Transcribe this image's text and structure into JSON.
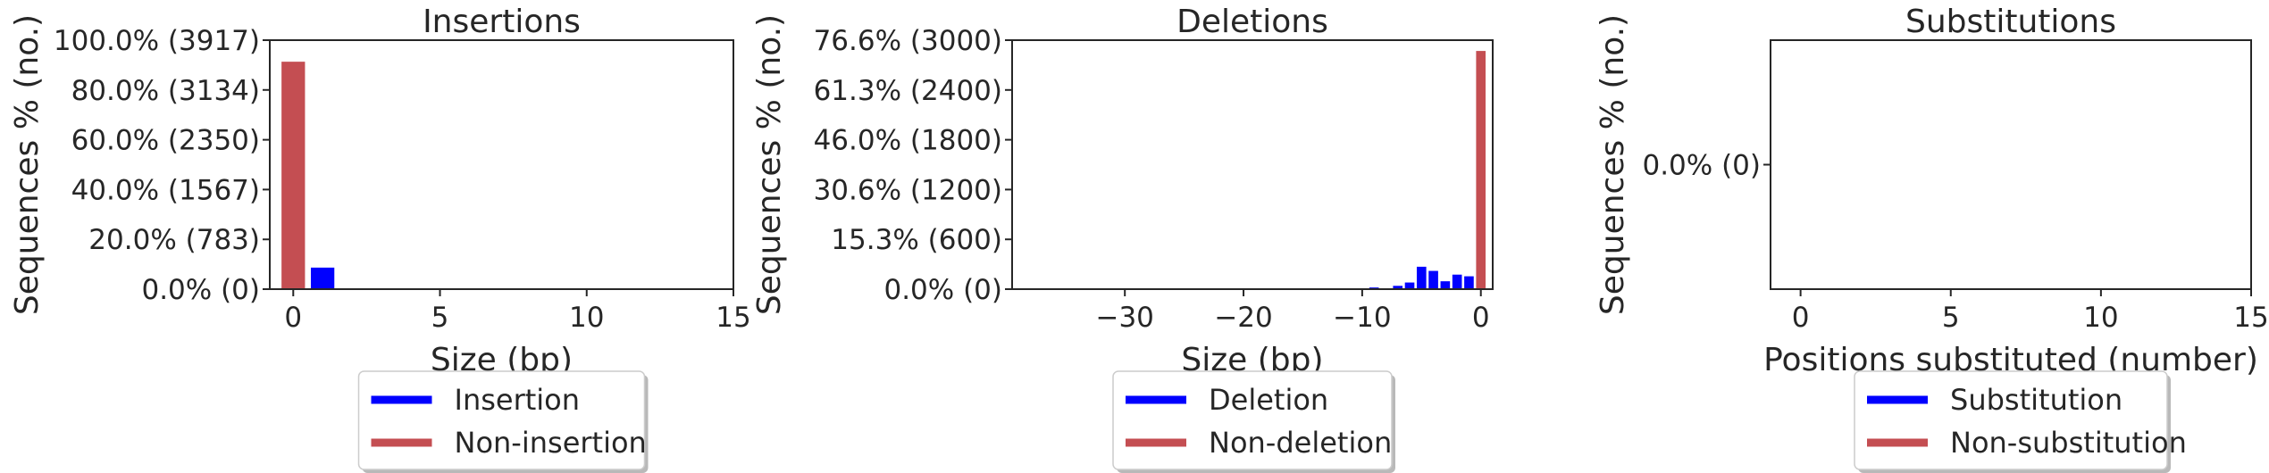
{
  "chart_data": [
    {
      "type": "bar",
      "title": "Insertions",
      "xlabel": "Size (bp)",
      "ylabel": "Sequences % (no.)",
      "xlim": [
        -0.8,
        15
      ],
      "xticks": [
        0,
        5,
        10,
        15
      ],
      "ylim": [
        0,
        3917
      ],
      "yticks": [
        0,
        783,
        1567,
        2350,
        3134,
        3917
      ],
      "ytick_labels": [
        "0.0% (0)",
        "20.0% (783)",
        "40.0% (1567)",
        "60.0% (2350)",
        "80.0% (3134)",
        "100.0% (3917)"
      ],
      "grid": false,
      "legend_position": "below",
      "series": [
        {
          "name": "Insertion",
          "color": "#0000ff",
          "x": [
            1
          ],
          "values": [
            339
          ]
        },
        {
          "name": "Non-insertion",
          "color": "#c44e52",
          "x": [
            0
          ],
          "values": [
            3578
          ]
        }
      ]
    },
    {
      "type": "bar",
      "title": "Deletions",
      "xlabel": "Size (bp)",
      "ylabel": "Sequences % (no.)",
      "xlim": [
        -39.5,
        1
      ],
      "xticks": [
        -30,
        -20,
        -10,
        0
      ],
      "xtick_labels": [
        "−30",
        "−20",
        "−10",
        "0"
      ],
      "ylim": [
        0,
        3000
      ],
      "yticks": [
        0,
        600,
        1200,
        1800,
        2400,
        3000
      ],
      "ytick_labels": [
        "0.0% (0)",
        "15.3% (600)",
        "30.6% (1200)",
        "46.0% (1800)",
        "61.3% (2400)",
        "76.6% (3000)"
      ],
      "grid": false,
      "legend_position": "below",
      "series": [
        {
          "name": "Deletion",
          "color": "#0000ff",
          "x": [
            -9,
            -8,
            -7,
            -6,
            -5,
            -4,
            -3,
            -2,
            -1
          ],
          "values": [
            20,
            5,
            40,
            80,
            270,
            220,
            95,
            175,
            155
          ]
        },
        {
          "name": "Non-deletion",
          "color": "#c44e52",
          "x": [
            0
          ],
          "values": [
            2870
          ]
        }
      ]
    },
    {
      "type": "bar",
      "title": "Substitutions",
      "xlabel": "Positions substituted (number)",
      "ylabel": "Sequences % (no.)",
      "xlim": [
        -1,
        15
      ],
      "xticks": [
        0,
        5,
        10,
        15
      ],
      "ylim": [
        -1,
        1
      ],
      "yticks": [
        0
      ],
      "ytick_labels": [
        "0.0% (0)"
      ],
      "grid": false,
      "legend_position": "below",
      "series": [
        {
          "name": "Substitution",
          "color": "#0000ff",
          "x": [],
          "values": []
        },
        {
          "name": "Non-substitution",
          "color": "#c44e52",
          "x": [],
          "values": []
        }
      ]
    }
  ]
}
